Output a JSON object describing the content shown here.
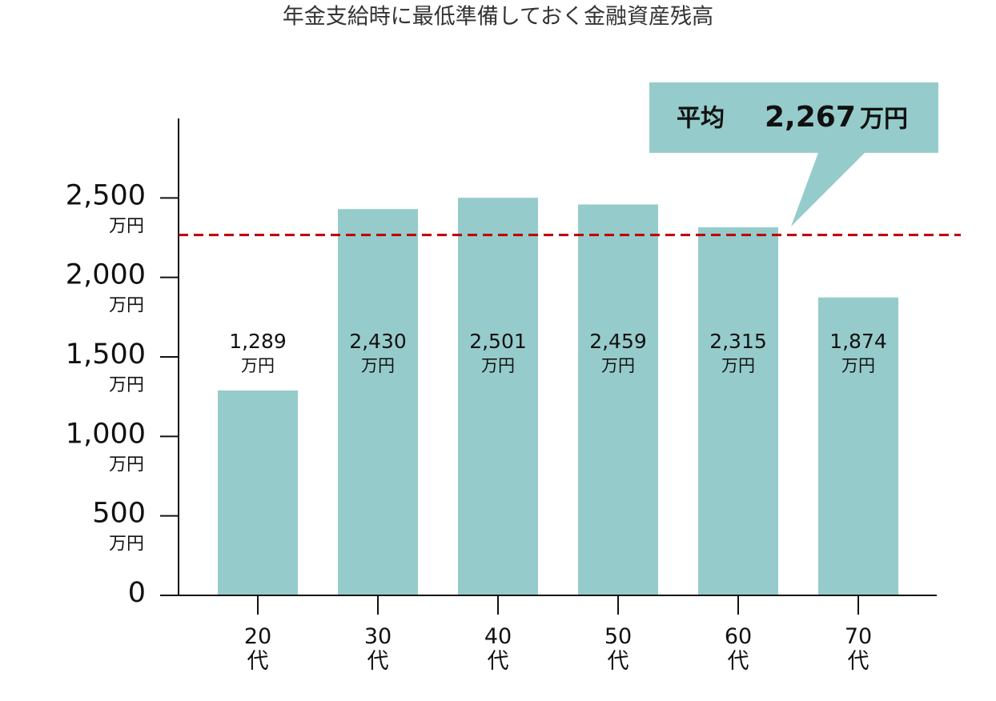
{
  "chart_data": {
    "type": "bar",
    "title": "年金支給時に最低準備しておく金融資産残高",
    "categories": [
      "20代",
      "30代",
      "40代",
      "50代",
      "60代",
      "70代"
    ],
    "values": [
      1289,
      2430,
      2501,
      2459,
      2315,
      1874
    ],
    "value_labels": [
      "1,289",
      "2,430",
      "2,501",
      "2,459",
      "2,315",
      "1,874"
    ],
    "unit": "万円",
    "color": "#96cbcb",
    "ylim": [
      0,
      3000
    ],
    "yticks": [
      0,
      {
        "value": 500,
        "label": "500"
      },
      {
        "value": 1000,
        "label": "1,000"
      },
      {
        "value": 1500,
        "label": "1,500"
      },
      {
        "value": 2000,
        "label": "2,000"
      },
      {
        "value": 2500,
        "label": "2,500"
      }
    ],
    "average": {
      "label": "平均",
      "value": 2267,
      "value_label": "2,267",
      "color": "#c00000"
    }
  }
}
